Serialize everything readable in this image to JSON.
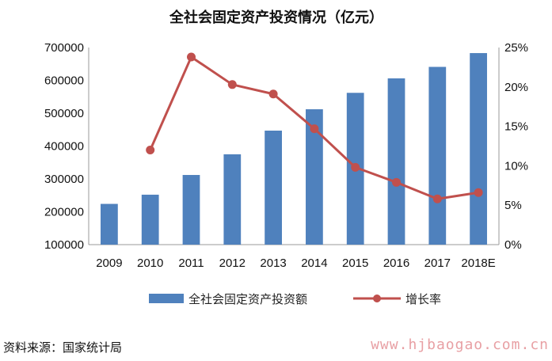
{
  "chart_data": {
    "type": "bar",
    "title": "全社会固定资产投资情况（亿元）",
    "categories": [
      "2009",
      "2010",
      "2011",
      "2012",
      "2013",
      "2014",
      "2015",
      "2016",
      "2017",
      "2018E"
    ],
    "series": [
      {
        "name": "全社会固定资产投资额",
        "type": "bar",
        "axis": "left",
        "color": "#4f81bd",
        "values": [
          224000,
          252000,
          312000,
          375000,
          447000,
          512000,
          562000,
          606000,
          641000,
          683000
        ]
      },
      {
        "name": "增长率",
        "type": "line",
        "axis": "right",
        "color": "#c0504d",
        "values": [
          null,
          12.0,
          23.8,
          20.3,
          19.1,
          14.7,
          9.8,
          7.9,
          5.8,
          6.6
        ]
      }
    ],
    "y_left": {
      "ylim": [
        100000,
        700000
      ],
      "ticks": [
        "100000",
        "200000",
        "300000",
        "400000",
        "500000",
        "600000",
        "700000"
      ]
    },
    "y_right": {
      "ylim": [
        0,
        25
      ],
      "ticks": [
        "0%",
        "5%",
        "10%",
        "15%",
        "20%",
        "25%"
      ]
    },
    "grid": false,
    "legend_position": "bottom"
  },
  "source": "资料来源：国家统计局",
  "watermark": "www.hjbaogao.com.cn"
}
